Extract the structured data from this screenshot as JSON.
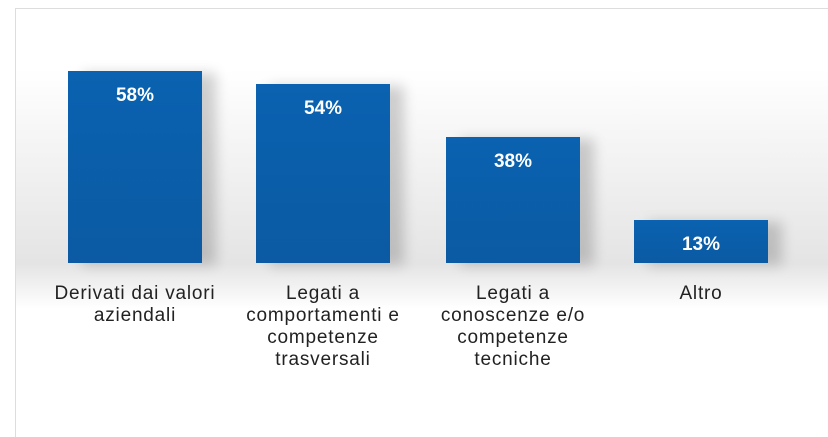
{
  "chart_data": {
    "type": "bar",
    "categories": [
      "Derivati dai valori aziendali",
      "Legati a comportamenti e competenze trasversali",
      "Legati a conoscenze e/o competenze tecniche",
      "Altro"
    ],
    "values": [
      58,
      54,
      38,
      13
    ],
    "value_labels": [
      "58%",
      "54%",
      "38%",
      "13%"
    ],
    "color": "#0a62b0"
  }
}
